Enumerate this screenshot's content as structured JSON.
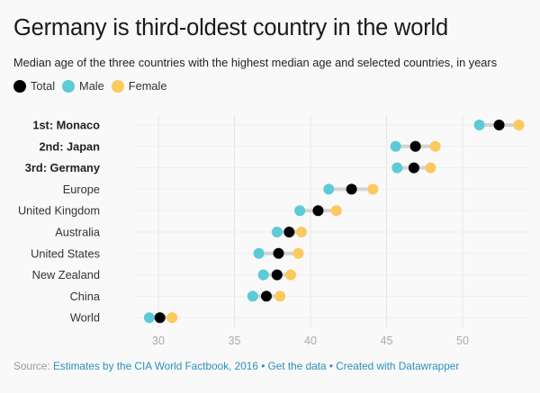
{
  "chart_data": {
    "type": "dot-range",
    "title": "Germany is third-oldest country in the world",
    "subtitle": "Median age of the three countries with the highest median age and selected countries, in years",
    "legend": [
      {
        "key": "total",
        "label": "Total",
        "color": "#000000"
      },
      {
        "key": "male",
        "label": "Male",
        "color": "#5ccbd6"
      },
      {
        "key": "female",
        "label": "Female",
        "color": "#fcc95e"
      }
    ],
    "connector_color": "#d3d3d3",
    "xlabel": "",
    "ylabel": "",
    "xlim": [
      27.5,
      54.2
    ],
    "xticks": [
      30,
      35,
      40,
      45,
      50
    ],
    "grid": true,
    "categories": [
      {
        "label": "1st: Monaco",
        "bold": true,
        "male": 51.1,
        "total": 52.4,
        "female": 53.7
      },
      {
        "label": "2nd: Japan",
        "bold": true,
        "male": 45.6,
        "total": 46.9,
        "female": 48.2
      },
      {
        "label": "3rd: Germany",
        "bold": true,
        "male": 45.7,
        "total": 46.8,
        "female": 47.9
      },
      {
        "label": "Europe",
        "bold": false,
        "male": 41.2,
        "total": 42.7,
        "female": 44.1
      },
      {
        "label": "United Kingdom",
        "bold": false,
        "male": 39.3,
        "total": 40.5,
        "female": 41.7
      },
      {
        "label": "Australia",
        "bold": false,
        "male": 37.8,
        "total": 38.6,
        "female": 39.4
      },
      {
        "label": "United States",
        "bold": false,
        "male": 36.6,
        "total": 37.9,
        "female": 39.2
      },
      {
        "label": "New Zealand",
        "bold": false,
        "male": 36.9,
        "total": 37.8,
        "female": 38.7
      },
      {
        "label": "China",
        "bold": false,
        "male": 36.2,
        "total": 37.1,
        "female": 38.0
      },
      {
        "label": "World",
        "bold": false,
        "male": 29.4,
        "total": 30.1,
        "female": 30.9
      }
    ]
  },
  "footer": {
    "source_prefix": "Source:",
    "source_link": "Estimates by the CIA World Factbook, 2016",
    "separator": "•",
    "get_data": "Get the data",
    "created_with": "Created with Datawrapper"
  }
}
